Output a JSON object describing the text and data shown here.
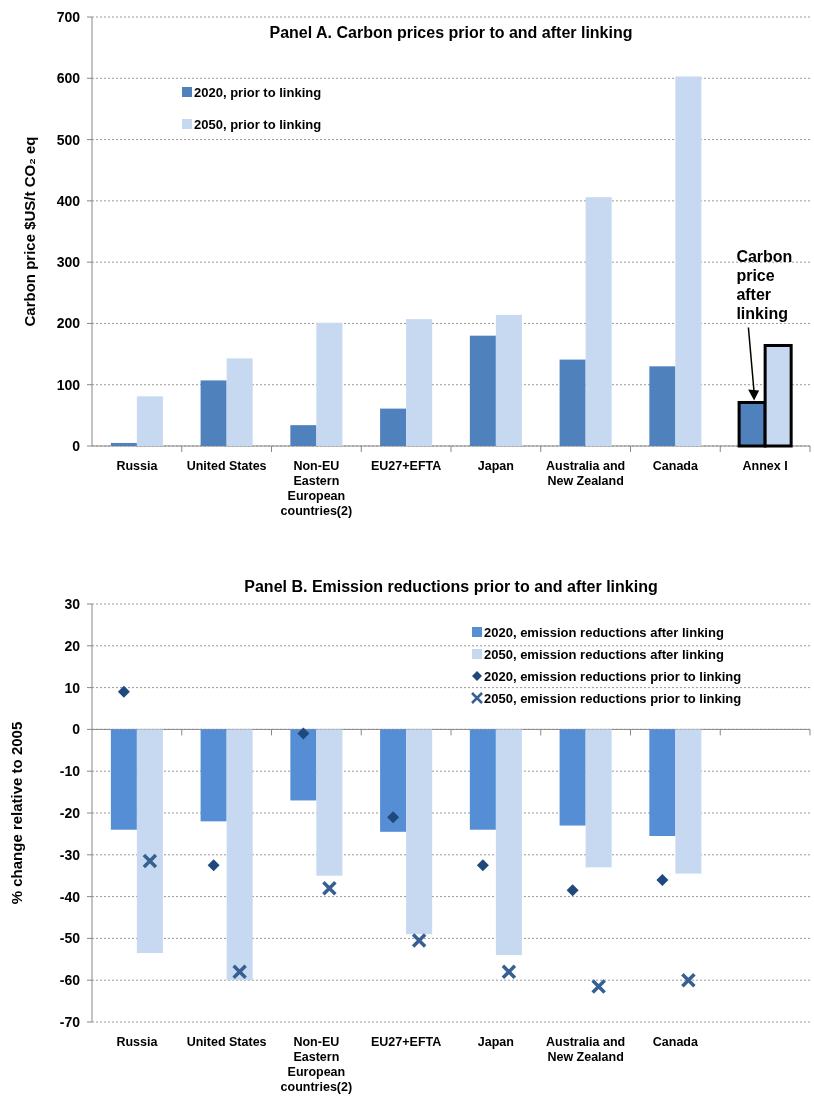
{
  "chart_data": [
    {
      "type": "bar",
      "title": "Panel A. Carbon prices prior to and after linking",
      "ylabel": "Carbon price $US/t CO₂ eq",
      "categories": [
        "Russia",
        "United States",
        "Non-EU Eastern European countries(2)",
        "EU27+EFTA",
        "Japan",
        "Australia and New Zealand",
        "Canada",
        "Annex I"
      ],
      "series": [
        {
          "name": "2020, prior to linking",
          "color": "#4f81bd",
          "values": [
            5,
            107,
            34,
            61,
            180,
            141,
            130,
            71
          ]
        },
        {
          "name": "2050, prior to linking",
          "color": "#c6d9f0",
          "values": [
            81,
            143,
            201,
            207,
            214,
            406,
            603,
            164
          ]
        }
      ],
      "annotations": [
        "Carbon price after linking"
      ],
      "ylim": [
        0,
        700
      ],
      "yticks": [
        0,
        100,
        200,
        300,
        400,
        500,
        600,
        700
      ],
      "grid": "y",
      "legend": "top left"
    },
    {
      "type": "bar",
      "title": "Panel B. Emission reductions prior to and after linking",
      "ylabel": "% change relative to 2005",
      "categories": [
        "Russia",
        "United States",
        "Non-EU Eastern European countries(2)",
        "EU27+EFTA",
        "Japan",
        "Australia and New Zealand",
        "Canada",
        null
      ],
      "series": [
        {
          "name": "2020, emission reductions after linking",
          "color": "#558ed5",
          "values": [
            -24,
            -22,
            -17,
            -24.5,
            -24,
            -23,
            -25.5,
            null
          ]
        },
        {
          "name": "2050, emission reductions after linking",
          "color": "#c6d9f0",
          "values": [
            -53.5,
            -60,
            -35,
            -49,
            -54,
            -33,
            -34.5,
            null
          ]
        },
        {
          "name": "2020, emission reductions prior to linking",
          "type": "scatter",
          "marker": "diamond",
          "color": "#1f497d",
          "values": [
            9,
            -32.5,
            -1,
            -21,
            -32.5,
            -38.5,
            -36,
            null
          ]
        },
        {
          "name": "2050, emission reductions prior to linking",
          "type": "scatter",
          "marker": "cross",
          "color": "#376092",
          "values": [
            -31.5,
            -58,
            -38,
            -50.5,
            -58,
            -61.5,
            -60,
            null
          ]
        }
      ],
      "ylim": [
        -70,
        30
      ],
      "yticks": [
        -70,
        -60,
        -50,
        -40,
        -30,
        -20,
        -10,
        0,
        10,
        20,
        30
      ],
      "grid": "y",
      "legend": "top right"
    }
  ]
}
